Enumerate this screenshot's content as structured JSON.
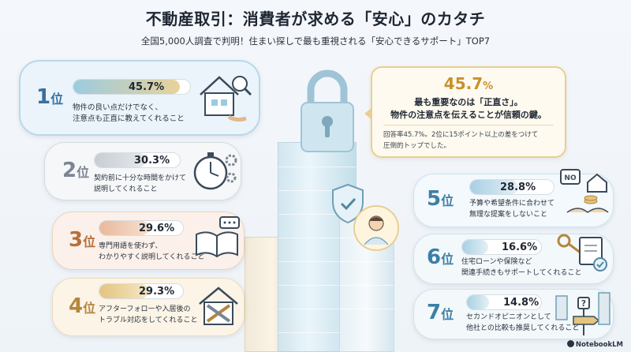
{
  "header": {
    "title": "不動産取引：消費者が求める「安心」のカタチ",
    "subtitle": "全国5,000人調査で判明！住まい探しで最も重視される「安心できるサポート」TOP7"
  },
  "ranks": [
    {
      "num": "1",
      "suffix": "位",
      "percent": "45.7%",
      "value": 45.7,
      "line1": "物件の良い点だけでなく、",
      "line2": "注意点も正直に教えてくれること",
      "icon": "house-magnifier-icon",
      "color": "#3a6fa0"
    },
    {
      "num": "2",
      "suffix": "位",
      "percent": "30.3%",
      "value": 30.3,
      "line1": "契約前に十分な時間をかけて",
      "line2": "説明してくれること",
      "icon": "clock-gear-icon",
      "color": "#7b8593"
    },
    {
      "num": "3",
      "suffix": "位",
      "percent": "29.6%",
      "value": 29.6,
      "line1": "専門用語を使わず、",
      "line2": "わかりやすく説明してくれること",
      "icon": "book-speech-icon",
      "color": "#b5703d"
    },
    {
      "num": "4",
      "suffix": "位",
      "percent": "29.3%",
      "value": 29.3,
      "line1": "アフターフォローや入居後の",
      "line2": "トラブル対応をしてくれること",
      "icon": "house-tools-icon",
      "color": "#b4863c"
    },
    {
      "num": "5",
      "suffix": "位",
      "percent": "28.8%",
      "value": 28.8,
      "line1": "予算や希望条件に合わせて",
      "line2": "無理な提案をしないこと",
      "icon": "no-handshake-icon",
      "color": "#3e7fa6"
    },
    {
      "num": "6",
      "suffix": "位",
      "percent": "16.6%",
      "value": 16.6,
      "line1": "住宅ローンや保険など",
      "line2": "関連手続きもサポートしてくれること",
      "icon": "key-document-icon",
      "color": "#3e7fa6"
    },
    {
      "num": "7",
      "suffix": "位",
      "percent": "14.8%",
      "value": 14.8,
      "line1": "セカンドオピニオンとして",
      "line2": "他社との比較も推奨してくれること",
      "icon": "signpost-icon",
      "color": "#3e7fa6"
    }
  ],
  "callout": {
    "value": "45.7",
    "unit": "%",
    "lead1": "最も重要なのは「正直さ」。",
    "lead2": "物件の注意点を伝えることが信頼の鍵。",
    "note1": "回答率45.7%。2位に15ポイント以上の差をつけて",
    "note2": "圧倒的トップでした。"
  },
  "brand": "NotebookLM"
}
